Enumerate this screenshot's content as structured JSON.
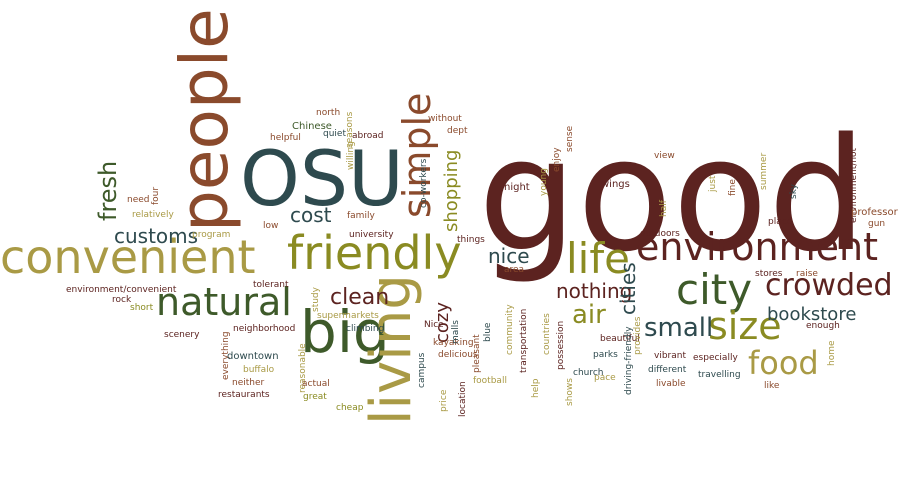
{
  "palette": {
    "dark_brown": "#5c2320",
    "olive": "#8a8b22",
    "dark_green": "#3e5a2a",
    "slate": "#2e4a4e",
    "khaki": "#a99a45",
    "rust": "#8a4a2c"
  },
  "words": [
    {
      "id": "good",
      "text": "good",
      "color": "#5c2320"
    },
    {
      "id": "people",
      "text": "people",
      "color": "#8a4a2c"
    },
    {
      "id": "osu",
      "text": "OSU",
      "color": "#2e4a4e"
    },
    {
      "id": "convenient",
      "text": "convenient",
      "color": "#a99a45"
    },
    {
      "id": "friendly",
      "text": "friendly",
      "color": "#8a8b22"
    },
    {
      "id": "environment",
      "text": "environment",
      "color": "#5c2320"
    },
    {
      "id": "life",
      "text": "life",
      "color": "#8a8b22"
    },
    {
      "id": "natural",
      "text": "natural",
      "color": "#3e5a2a"
    },
    {
      "id": "big",
      "text": "big",
      "color": "#3e5a2a"
    },
    {
      "id": "living",
      "text": "living",
      "color": "#a99a45"
    },
    {
      "id": "city",
      "text": "city",
      "color": "#3e5a2a"
    },
    {
      "id": "crowded",
      "text": "crowded",
      "color": "#5c2320"
    },
    {
      "id": "size",
      "text": "size",
      "color": "#8a8b22"
    },
    {
      "id": "food",
      "text": "food",
      "color": "#a99a45"
    },
    {
      "id": "simple",
      "text": "simple",
      "color": "#8a4a2c"
    },
    {
      "id": "small",
      "text": "small",
      "color": "#2e4a4e"
    },
    {
      "id": "air",
      "text": "air",
      "color": "#8a8b22"
    },
    {
      "id": "bookstore",
      "text": "bookstore",
      "color": "#2e4a4e"
    },
    {
      "id": "clean",
      "text": "clean",
      "color": "#5c2320"
    },
    {
      "id": "customs",
      "text": "customs",
      "color": "#2e4a4e"
    },
    {
      "id": "cost",
      "text": "cost",
      "color": "#2e4a4e"
    },
    {
      "id": "fresh",
      "text": "fresh",
      "color": "#3e5a2a"
    },
    {
      "id": "nothing",
      "text": "nothing",
      "color": "#5c2320"
    },
    {
      "id": "cities",
      "text": "cities",
      "color": "#2e4a4e"
    },
    {
      "id": "nice",
      "text": "nice",
      "color": "#2e4a4e"
    },
    {
      "id": "shopping",
      "text": "shopping",
      "color": "#8a8b22"
    },
    {
      "id": "cozy",
      "text": "cozy",
      "color": "#5c2320"
    },
    {
      "id": "north",
      "text": "north",
      "color": "#8a4a2c"
    },
    {
      "id": "seasons",
      "text": "seasons",
      "color": "#a99a45"
    },
    {
      "id": "chinese",
      "text": "Chinese",
      "color": "#3e5a2a"
    },
    {
      "id": "quiet",
      "text": "quiet",
      "color": "#2e4a4e"
    },
    {
      "id": "helpful",
      "text": "helpful",
      "color": "#8a4a2c"
    },
    {
      "id": "abroad",
      "text": "abroad",
      "color": "#5c2320"
    },
    {
      "id": "willing",
      "text": "willing",
      "color": "#a99a45"
    },
    {
      "id": "without",
      "text": "without",
      "color": "#8a4a2c"
    },
    {
      "id": "dept",
      "text": "dept",
      "color": "#8a4a2c"
    },
    {
      "id": "coworkers",
      "text": "co-workers",
      "color": "#2e4a4e"
    },
    {
      "id": "need",
      "text": "need",
      "color": "#8a4a2c"
    },
    {
      "id": "four",
      "text": "four",
      "color": "#8a4a2c"
    },
    {
      "id": "relatively",
      "text": "relatively",
      "color": "#a99a45"
    },
    {
      "id": "family",
      "text": "family",
      "color": "#8a4a2c"
    },
    {
      "id": "university",
      "text": "university",
      "color": "#5c2320"
    },
    {
      "id": "program",
      "text": "program",
      "color": "#a99a45"
    },
    {
      "id": "low",
      "text": "low",
      "color": "#8a4a2c"
    },
    {
      "id": "night",
      "text": "night",
      "color": "#5c2320"
    },
    {
      "id": "young",
      "text": "young",
      "color": "#a99a45"
    },
    {
      "id": "enjoy",
      "text": "enjoy",
      "color": "#8a4a2c"
    },
    {
      "id": "sense",
      "text": "sense",
      "color": "#8a4a2c"
    },
    {
      "id": "things",
      "text": "things",
      "color": "#5c2320"
    },
    {
      "id": "area",
      "text": "area",
      "color": "#8a4a2c"
    },
    {
      "id": "env_convenient",
      "text": "environment/convenient",
      "color": "#5c2320"
    },
    {
      "id": "rock",
      "text": "rock",
      "color": "#5c2320"
    },
    {
      "id": "short",
      "text": "short",
      "color": "#8a8b22"
    },
    {
      "id": "tolerant",
      "text": "tolerant",
      "color": "#5c2320"
    },
    {
      "id": "study",
      "text": "study",
      "color": "#a99a45"
    },
    {
      "id": "supermarkets",
      "text": "supermarkets",
      "color": "#a99a45"
    },
    {
      "id": "neighborhood",
      "text": "neighborhood",
      "color": "#5c2320"
    },
    {
      "id": "climbing",
      "text": "climbing",
      "color": "#2e4a4e"
    },
    {
      "id": "scenery",
      "text": "scenery",
      "color": "#5c2320"
    },
    {
      "id": "everything",
      "text": "everything",
      "color": "#8a4a2c"
    },
    {
      "id": "downtown",
      "text": "downtown",
      "color": "#2e4a4e"
    },
    {
      "id": "buffalo",
      "text": "buffalo",
      "color": "#a99a45"
    },
    {
      "id": "neither",
      "text": "neither",
      "color": "#8a4a2c"
    },
    {
      "id": "restaurants",
      "text": "restaurants",
      "color": "#5c2320"
    },
    {
      "id": "reasonable",
      "text": "reasonable",
      "color": "#a99a45"
    },
    {
      "id": "actual",
      "text": "actual",
      "color": "#8a4a2c"
    },
    {
      "id": "great",
      "text": "great",
      "color": "#8a8b22"
    },
    {
      "id": "cheap",
      "text": "cheap",
      "color": "#8a8b22"
    },
    {
      "id": "nice_small",
      "text": "Nice",
      "color": "#5c2320"
    },
    {
      "id": "kayaking",
      "text": "kayaking",
      "color": "#8a4a2c"
    },
    {
      "id": "delicious",
      "text": "delicious",
      "color": "#8a4a2c"
    },
    {
      "id": "price",
      "text": "price",
      "color": "#a99a45"
    },
    {
      "id": "campus",
      "text": "campus",
      "color": "#2e4a4e"
    },
    {
      "id": "location",
      "text": "location",
      "color": "#5c2320"
    },
    {
      "id": "malls",
      "text": "malls",
      "color": "#2e4a4e"
    },
    {
      "id": "pleasant",
      "text": "pleasant",
      "color": "#8a4a2c"
    },
    {
      "id": "blue",
      "text": "blue",
      "color": "#2e4a4e"
    },
    {
      "id": "football",
      "text": "football",
      "color": "#a99a45"
    },
    {
      "id": "community",
      "text": "community",
      "color": "#a99a45"
    },
    {
      "id": "transportation",
      "text": "transportation",
      "color": "#5c2320"
    },
    {
      "id": "help",
      "text": "help",
      "color": "#a99a45"
    },
    {
      "id": "possession",
      "text": "possession",
      "color": "#5c2320"
    },
    {
      "id": "countries",
      "text": "countries",
      "color": "#a99a45"
    },
    {
      "id": "shows",
      "text": "shows",
      "color": "#a99a45"
    },
    {
      "id": "church",
      "text": "church",
      "color": "#2e4a4e"
    },
    {
      "id": "parks",
      "text": "parks",
      "color": "#2e4a4e"
    },
    {
      "id": "beautiful",
      "text": "beautiful",
      "color": "#5c2320"
    },
    {
      "id": "pace",
      "text": "pace",
      "color": "#a99a45"
    },
    {
      "id": "driving_friendly",
      "text": "driving-friendly",
      "color": "#2e4a4e"
    },
    {
      "id": "provides",
      "text": "provides",
      "color": "#a99a45"
    },
    {
      "id": "vibrant",
      "text": "vibrant",
      "color": "#5c2320"
    },
    {
      "id": "different",
      "text": "different",
      "color": "#2e4a4e"
    },
    {
      "id": "livable",
      "text": "livable",
      "color": "#8a4a2c"
    },
    {
      "id": "especially",
      "text": "especially",
      "color": "#5c2320"
    },
    {
      "id": "travelling",
      "text": "travelling",
      "color": "#2e4a4e"
    },
    {
      "id": "like",
      "text": "like",
      "color": "#8a4a2c"
    },
    {
      "id": "outdoors",
      "text": "outdoors",
      "color": "#5c2320"
    },
    {
      "id": "half",
      "text": "half",
      "color": "#a99a45"
    },
    {
      "id": "stores",
      "text": "stores",
      "color": "#5c2320"
    },
    {
      "id": "raise",
      "text": "raise",
      "color": "#8a4a2c"
    },
    {
      "id": "view",
      "text": "view",
      "color": "#8a4a2c"
    },
    {
      "id": "wings",
      "text": "wings",
      "color": "#5c2320"
    },
    {
      "id": "just",
      "text": "just",
      "color": "#a99a45"
    },
    {
      "id": "fine",
      "text": "fine",
      "color": "#8a4a2c"
    },
    {
      "id": "summer",
      "text": "summer",
      "color": "#a99a45"
    },
    {
      "id": "sky",
      "text": "sky",
      "color": "#2e4a4e"
    },
    {
      "id": "env_not",
      "text": "environment/not",
      "color": "#5c2320"
    },
    {
      "id": "professor",
      "text": "professor",
      "color": "#8a4a2c"
    },
    {
      "id": "gun",
      "text": "gun",
      "color": "#8a4a2c"
    },
    {
      "id": "place",
      "text": "place",
      "color": "#5c2320"
    },
    {
      "id": "enough",
      "text": "enough",
      "color": "#5c2320"
    },
    {
      "id": "home",
      "text": "home",
      "color": "#a99a45"
    }
  ]
}
